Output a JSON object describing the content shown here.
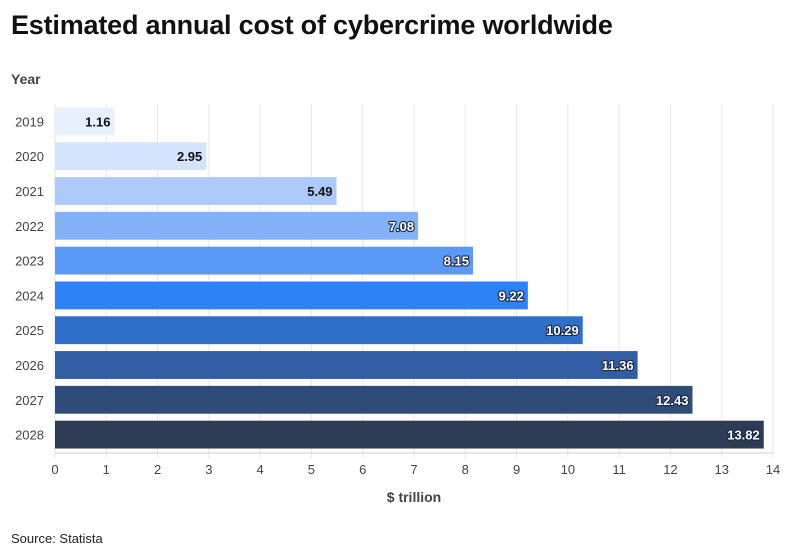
{
  "title": "Estimated annual cost of cybercrime worldwide",
  "y_axis_title": "Year",
  "source": "Source: Statista",
  "chart_data": {
    "type": "bar",
    "orientation": "horizontal",
    "title": "Estimated annual cost of cybercrime worldwide",
    "xlabel": "$ trillion",
    "ylabel": "Year",
    "categories": [
      "2019",
      "2020",
      "2021",
      "2022",
      "2023",
      "2024",
      "2025",
      "2026",
      "2027",
      "2028"
    ],
    "values": [
      1.16,
      2.95,
      5.49,
      7.08,
      8.15,
      9.22,
      10.29,
      11.36,
      12.43,
      13.82
    ],
    "value_labels": [
      "1.16",
      "2.95",
      "5.49",
      "7.08",
      "8.15",
      "9.22",
      "10.29",
      "11.36",
      "12.43",
      "13.82"
    ],
    "colors": [
      "#e8f0fd",
      "#d4e4fc",
      "#aecafa",
      "#84b2f8",
      "#5a9af6",
      "#2f82f5",
      "#2f6ec9",
      "#305da3",
      "#2f4b7a",
      "#2d3b55"
    ],
    "label_colors": [
      "#111111",
      "#111111",
      "#111111",
      "#ffffff",
      "#ffffff",
      "#ffffff",
      "#ffffff",
      "#ffffff",
      "#ffffff",
      "#ffffff"
    ],
    "xlim": [
      0,
      14
    ],
    "xticks": [
      0,
      1,
      2,
      3,
      4,
      5,
      6,
      7,
      8,
      9,
      10,
      11,
      12,
      13,
      14
    ],
    "grid": true,
    "legend": "none"
  }
}
